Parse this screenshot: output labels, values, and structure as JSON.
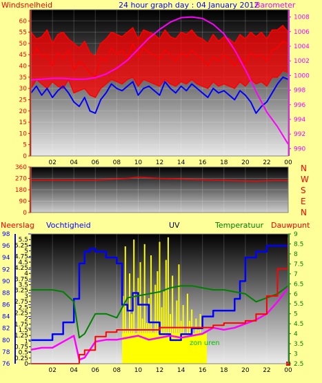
{
  "chart_data": [
    {
      "type": "line",
      "title": "24 hour graph day : 04 January 2012",
      "left_axis_label": "Windsnelheid",
      "right_axis_label": "Barometer",
      "x_ticks": [
        "02",
        "04",
        "06",
        "08",
        "10",
        "12",
        "14",
        "16",
        "18",
        "20",
        "22",
        "00"
      ],
      "ylim_left": [
        0,
        65
      ],
      "yticks_left": [
        0,
        5,
        10,
        15,
        20,
        25,
        30,
        35,
        40,
        45,
        50,
        55,
        60
      ],
      "ylim_right": [
        989,
        1009
      ],
      "yticks_right": [
        990,
        992,
        994,
        996,
        998,
        1000,
        1002,
        1004,
        1006,
        1008
      ],
      "series": [
        {
          "color": "#ff0000",
          "axis": "left",
          "x": [
            0,
            0.5,
            1,
            1.5,
            2,
            2.5,
            3,
            3.5,
            4,
            4.5,
            5,
            5.5,
            6,
            6.5,
            7,
            7.5,
            8,
            8.5,
            9,
            9.5,
            10,
            10.5,
            11,
            11.5,
            12,
            12.5,
            13,
            13.5,
            14,
            14.5,
            15,
            15.5,
            16,
            16.5,
            17,
            17.5,
            18,
            18.5,
            19,
            19.5,
            20,
            20.5,
            21,
            21.5,
            22,
            22.5,
            23,
            23.5,
            24
          ],
          "y": [
            42,
            48,
            44,
            45,
            40,
            46,
            43,
            47,
            38,
            42,
            40,
            37,
            35,
            44,
            42,
            48,
            45,
            47,
            43,
            50,
            44,
            48,
            46,
            45,
            43,
            47,
            45,
            42,
            46,
            44,
            47,
            45,
            43,
            40,
            44,
            42,
            45,
            43,
            40,
            44,
            41,
            46,
            44,
            45,
            42,
            47,
            48,
            51,
            50
          ]
        },
        {
          "color": "#ff0000",
          "axis": "left",
          "x": [
            0,
            0.5,
            1,
            1.5,
            2,
            2.5,
            3,
            3.5,
            4,
            4.5,
            5,
            5.5,
            6,
            6.5,
            7,
            7.5,
            8,
            8.5,
            9,
            9.5,
            10,
            10.5,
            11,
            11.5,
            12,
            12.5,
            13,
            13.5,
            14,
            14.5,
            15,
            15.5,
            16,
            16.5,
            17,
            17.5,
            18,
            18.5,
            19,
            19.5,
            20,
            20.5,
            21,
            21.5,
            22,
            22.5,
            23,
            23.5,
            24
          ],
          "y": [
            55,
            52,
            53,
            56,
            50,
            54,
            55,
            52,
            50,
            48,
            51,
            46,
            44,
            50,
            52,
            55,
            54,
            53,
            55,
            57,
            52,
            56,
            55,
            54,
            52,
            56,
            53,
            52,
            55,
            54,
            56,
            53,
            52,
            50,
            54,
            51,
            53,
            52,
            50,
            54,
            52,
            55,
            53,
            55,
            52,
            56,
            56,
            58,
            55
          ]
        },
        {
          "color": "#ff0000",
          "axis": "left",
          "x": [
            0,
            0.5,
            1,
            1.5,
            2,
            2.5,
            3,
            3.5,
            4,
            4.5,
            5,
            5.5,
            6,
            6.5,
            7,
            7.5,
            8,
            8.5,
            9,
            9.5,
            10,
            10.5,
            11,
            11.5,
            12,
            12.5,
            13,
            13.5,
            14,
            14.5,
            15,
            15.5,
            16,
            16.5,
            17,
            17.5,
            18,
            18.5,
            19,
            19.5,
            20,
            20.5,
            21,
            21.5,
            22,
            22.5,
            23,
            23.5,
            24
          ],
          "y": [
            30,
            34,
            32,
            30,
            33,
            31,
            30,
            34,
            28,
            29,
            30,
            27,
            26,
            30,
            32,
            34,
            33,
            32,
            34,
            35,
            31,
            34,
            33,
            32,
            31,
            34,
            32,
            31,
            33,
            32,
            34,
            32,
            31,
            30,
            33,
            31,
            32,
            31,
            30,
            33,
            31,
            34,
            32,
            33,
            31,
            35,
            35,
            38,
            37
          ]
        },
        {
          "color": "#0000ff",
          "axis": "left",
          "x": [
            0,
            0.5,
            1,
            1.5,
            2,
            2.5,
            3,
            3.5,
            4,
            4.5,
            5,
            5.5,
            6,
            6.5,
            7,
            7.5,
            8,
            8.5,
            9,
            9.5,
            10,
            10.5,
            11,
            11.5,
            12,
            12.5,
            13,
            13.5,
            14,
            14.5,
            15,
            15.5,
            16,
            16.5,
            17,
            17.5,
            18,
            18.5,
            19,
            19.5,
            20,
            20.5,
            21,
            21.5,
            22,
            22.5,
            23,
            23.5,
            24
          ],
          "y": [
            28,
            31,
            27,
            30,
            26,
            29,
            31,
            28,
            24,
            22,
            26,
            20,
            19,
            25,
            28,
            32,
            30,
            29,
            31,
            33,
            27,
            30,
            31,
            29,
            27,
            33,
            30,
            28,
            31,
            29,
            32,
            30,
            28,
            26,
            30,
            28,
            29,
            27,
            25,
            29,
            27,
            24,
            19,
            22,
            24,
            28,
            32,
            35,
            34
          ]
        },
        {
          "color": "#ff00ff",
          "axis": "right",
          "x": [
            0,
            1,
            2,
            3,
            4,
            5,
            6,
            7,
            8,
            9,
            10,
            11,
            12,
            13,
            14,
            15,
            16,
            17,
            18,
            19,
            20,
            21,
            22,
            23,
            23.5,
            24
          ],
          "y": [
            999.4,
            999.5,
            999.6,
            999.6,
            999.5,
            999.5,
            999.7,
            1000.2,
            1001.0,
            1002.1,
            1003.6,
            1005.1,
            1006.3,
            1007.3,
            1007.9,
            1008.0,
            1007.8,
            1007.0,
            1005.7,
            1003.5,
            1000.8,
            997.8,
            995.0,
            993.0,
            991.8,
            990.6
          ]
        }
      ]
    },
    {
      "type": "line",
      "ylim": [
        0,
        360
      ],
      "yticks": [
        0,
        90,
        180,
        270,
        360
      ],
      "compass_labels": [
        "N",
        "W",
        "S",
        "E",
        "N"
      ],
      "series": [
        {
          "color": "#ff0000",
          "x": [
            0,
            1,
            2,
            3,
            4,
            5,
            6,
            7,
            8,
            9,
            10,
            11,
            12,
            13,
            14,
            15,
            16,
            17,
            18,
            19,
            20,
            21,
            22,
            23,
            24
          ],
          "y": [
            255,
            256,
            258,
            257,
            256,
            255,
            257,
            262,
            265,
            270,
            280,
            275,
            270,
            268,
            265,
            262,
            260,
            258,
            255,
            252,
            250,
            248,
            252,
            254,
            252
          ]
        }
      ]
    },
    {
      "type": "line",
      "labels": [
        "Neerslag",
        "Vochtigheid",
        "UV",
        "Temperatuur",
        "Dauwpunt",
        "zon"
      ],
      "humidity_axis": {
        "ylim": [
          76,
          98
        ],
        "yticks": [
          76,
          78,
          80,
          82,
          84,
          86,
          88,
          90,
          92,
          94,
          96,
          98
        ]
      },
      "uv_axis": {
        "ylim": [
          0,
          5.75
        ],
        "yticks": [
          0,
          0.25,
          0.5,
          0.75,
          1,
          1.25,
          1.5,
          1.75,
          2,
          2.25,
          2.5,
          2.75,
          3,
          3.25,
          3.5,
          3.75,
          4,
          4.25,
          4.5,
          4.75,
          5,
          5.25,
          5.5
        ]
      },
      "temp_axis": {
        "ylim": [
          2.5,
          9
        ],
        "yticks": [
          2.5,
          3,
          3.5,
          4,
          4.5,
          5,
          5.5,
          6,
          6.5,
          7,
          7.5,
          8,
          8.5,
          9
        ]
      },
      "sun_span": [
        8.5,
        16.4
      ],
      "series": [
        {
          "color": "#0000ff",
          "axis": "humidity",
          "x": [
            0,
            1,
            2,
            3,
            4,
            4.5,
            5,
            5.5,
            6,
            7,
            7.5,
            8,
            8.5,
            9,
            9.5,
            10,
            11,
            12,
            13,
            14,
            15,
            16,
            17,
            18,
            19,
            19.5,
            20,
            21,
            22,
            23,
            24
          ],
          "y": [
            80,
            80,
            81,
            83,
            87,
            93,
            95,
            95.5,
            95,
            94,
            94,
            93,
            86,
            85,
            88,
            86,
            83,
            81,
            80,
            81,
            82,
            84,
            85,
            85,
            87,
            90,
            94,
            95,
            96,
            96,
            95
          ]
        },
        {
          "color": "#008000",
          "axis": "temp",
          "x": [
            0,
            1,
            2,
            3,
            4,
            4.5,
            5,
            5.5,
            6,
            7,
            8,
            9,
            10,
            11,
            12,
            13,
            14,
            15,
            16,
            17,
            18,
            19,
            20,
            21,
            22,
            23,
            24
          ],
          "y": [
            6.2,
            6.2,
            6.2,
            6.1,
            5.6,
            3.8,
            4.0,
            4.5,
            5.0,
            5.0,
            4.8,
            5.8,
            5.9,
            6.0,
            6.1,
            6.3,
            6.4,
            6.4,
            6.3,
            6.2,
            6.2,
            6.1,
            6.0,
            5.6,
            5.8,
            6.0,
            6.4
          ]
        },
        {
          "color": "#ff00ff",
          "axis": "temp",
          "x": [
            0,
            1,
            2,
            3,
            4,
            4.5,
            5,
            5.5,
            6,
            7,
            8,
            9,
            10,
            11,
            12,
            13,
            14,
            15,
            16,
            17,
            18,
            19,
            20,
            21,
            22,
            23,
            24
          ],
          "y": [
            3.2,
            3.3,
            3.3,
            3.6,
            3.9,
            2.7,
            2.8,
            3.2,
            3.6,
            3.7,
            3.7,
            3.8,
            3.9,
            3.7,
            3.8,
            3.9,
            3.8,
            3.9,
            4.0,
            4.3,
            4.2,
            4.3,
            4.5,
            4.7,
            5.0,
            5.6,
            6.3
          ]
        },
        {
          "color": "#ff0000",
          "axis": "rain_mm",
          "x": [
            0,
            4,
            4.5,
            5,
            6,
            7,
            8,
            9,
            10,
            11,
            12,
            13,
            14,
            15,
            16,
            17,
            18,
            19,
            20,
            21,
            22,
            23,
            24
          ],
          "y": [
            0,
            0,
            0.4,
            0.6,
            1.2,
            1.4,
            1.5,
            1.5,
            1.5,
            1.5,
            1.6,
            1.6,
            1.6,
            1.6,
            1.6,
            1.7,
            1.8,
            1.8,
            1.9,
            2.2,
            3.0,
            4.2,
            5.6
          ]
        }
      ],
      "uv_bars": {
        "color": "#ffff00",
        "x": [
          8.6,
          8.8,
          9.0,
          9.2,
          9.4,
          9.6,
          9.8,
          10.0,
          10.2,
          10.4,
          10.6,
          10.8,
          11.0,
          11.2,
          11.4,
          11.6,
          11.8,
          12.0,
          12.2,
          12.4,
          12.6,
          12.8,
          13.0,
          13.2,
          13.4,
          13.6,
          13.8,
          14.0,
          14.2,
          14.4,
          14.6,
          14.8,
          15.0,
          15.2,
          15.4,
          15.6,
          15.8,
          16.0,
          16.2
        ],
        "y": [
          3.0,
          5.2,
          1.5,
          4.0,
          2.2,
          5.5,
          1.2,
          3.8,
          4.5,
          2.0,
          5.3,
          1.8,
          2.9,
          4.8,
          1.4,
          3.5,
          4.1,
          5.4,
          2.5,
          3.2,
          4.6,
          5.6,
          2.2,
          3.9,
          1.6,
          2.8,
          4.4,
          1.9,
          2.6,
          1.1,
          3.1,
          1.9,
          2.4,
          1.2,
          2.0,
          1.5,
          2.2,
          0.8,
          0.6
        ]
      }
    }
  ],
  "top": {
    "title": "24 hour graph day : 04 January 2012",
    "left_label": "Windsnelheid",
    "right_label": "Barometer"
  },
  "bottom": {
    "labels": [
      "Neerslag",
      "Vochtigheid",
      "UV",
      "Temperatuur",
      "Dauwpunt"
    ],
    "sun_label": "zon uren"
  },
  "colors": {
    "background": "#ffff99",
    "wind": "#ff0000",
    "gust": "#0000ff",
    "baro": "#ff00ff",
    "temp": "#008000",
    "uv": "#ffff00",
    "humidity": "#0000ff",
    "rain": "#ff0000"
  }
}
